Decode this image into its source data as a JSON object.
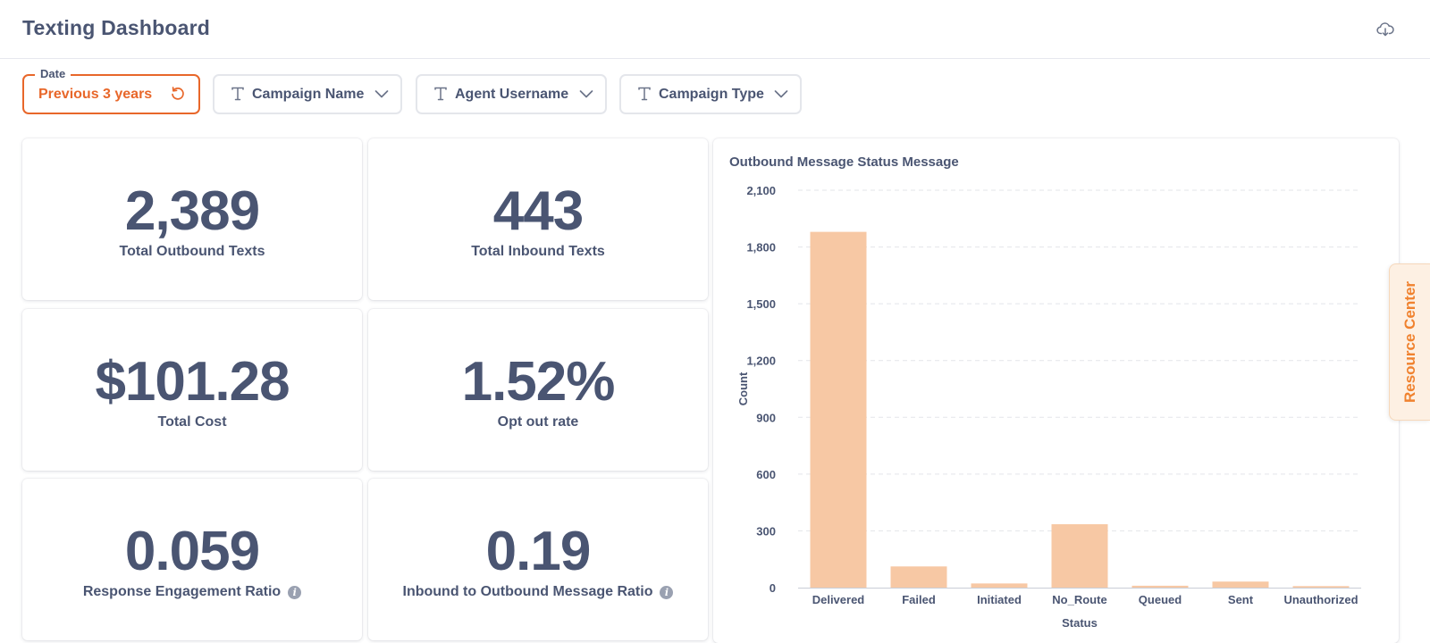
{
  "header": {
    "title": "Texting Dashboard",
    "download_icon": "cloud-download-icon"
  },
  "filters": {
    "date": {
      "legend": "Date",
      "value": "Previous 3 years",
      "icon": "reset-icon"
    },
    "campaign_name": {
      "label": "Campaign Name",
      "icon": "text-type-icon"
    },
    "agent_username": {
      "label": "Agent Username",
      "icon": "text-type-icon"
    },
    "campaign_type": {
      "label": "Campaign Type",
      "icon": "text-type-icon"
    }
  },
  "kpis": {
    "outbound": {
      "value": "2,389",
      "label": "Total Outbound Texts"
    },
    "inbound": {
      "value": "443",
      "label": "Total Inbound Texts"
    },
    "cost": {
      "value": "$101.28",
      "label": "Total Cost"
    },
    "opt_out": {
      "value": "1.52%",
      "label": "Opt out rate"
    },
    "engagement": {
      "value": "0.059",
      "label": "Response Engagement Ratio"
    },
    "ratio": {
      "value": "0.19",
      "label": "Inbound to Outbound Message Ratio"
    }
  },
  "resource_center": {
    "label": "Resource Center"
  },
  "colors": {
    "accent": "#e8672a",
    "bar": "#f7c8a4",
    "text": "#4a5572",
    "resource": "#f0822f"
  },
  "chart_data": {
    "type": "bar",
    "title": "Outbound Message Status Message",
    "xlabel": "Status",
    "ylabel": "Count",
    "categories": [
      "Delivered",
      "Failed",
      "Initiated",
      "No_Route",
      "Queued",
      "Sent",
      "Unauthorized"
    ],
    "values": [
      1880,
      112,
      22,
      335,
      10,
      32,
      8
    ],
    "ylim": [
      0,
      2100
    ],
    "yticks": [
      0,
      300,
      600,
      900,
      1200,
      1500,
      1800,
      2100
    ],
    "ytick_labels": [
      "0",
      "300",
      "600",
      "900",
      "1,200",
      "1,500",
      "1,800",
      "2,100"
    ],
    "grid": true,
    "legend": "none"
  }
}
